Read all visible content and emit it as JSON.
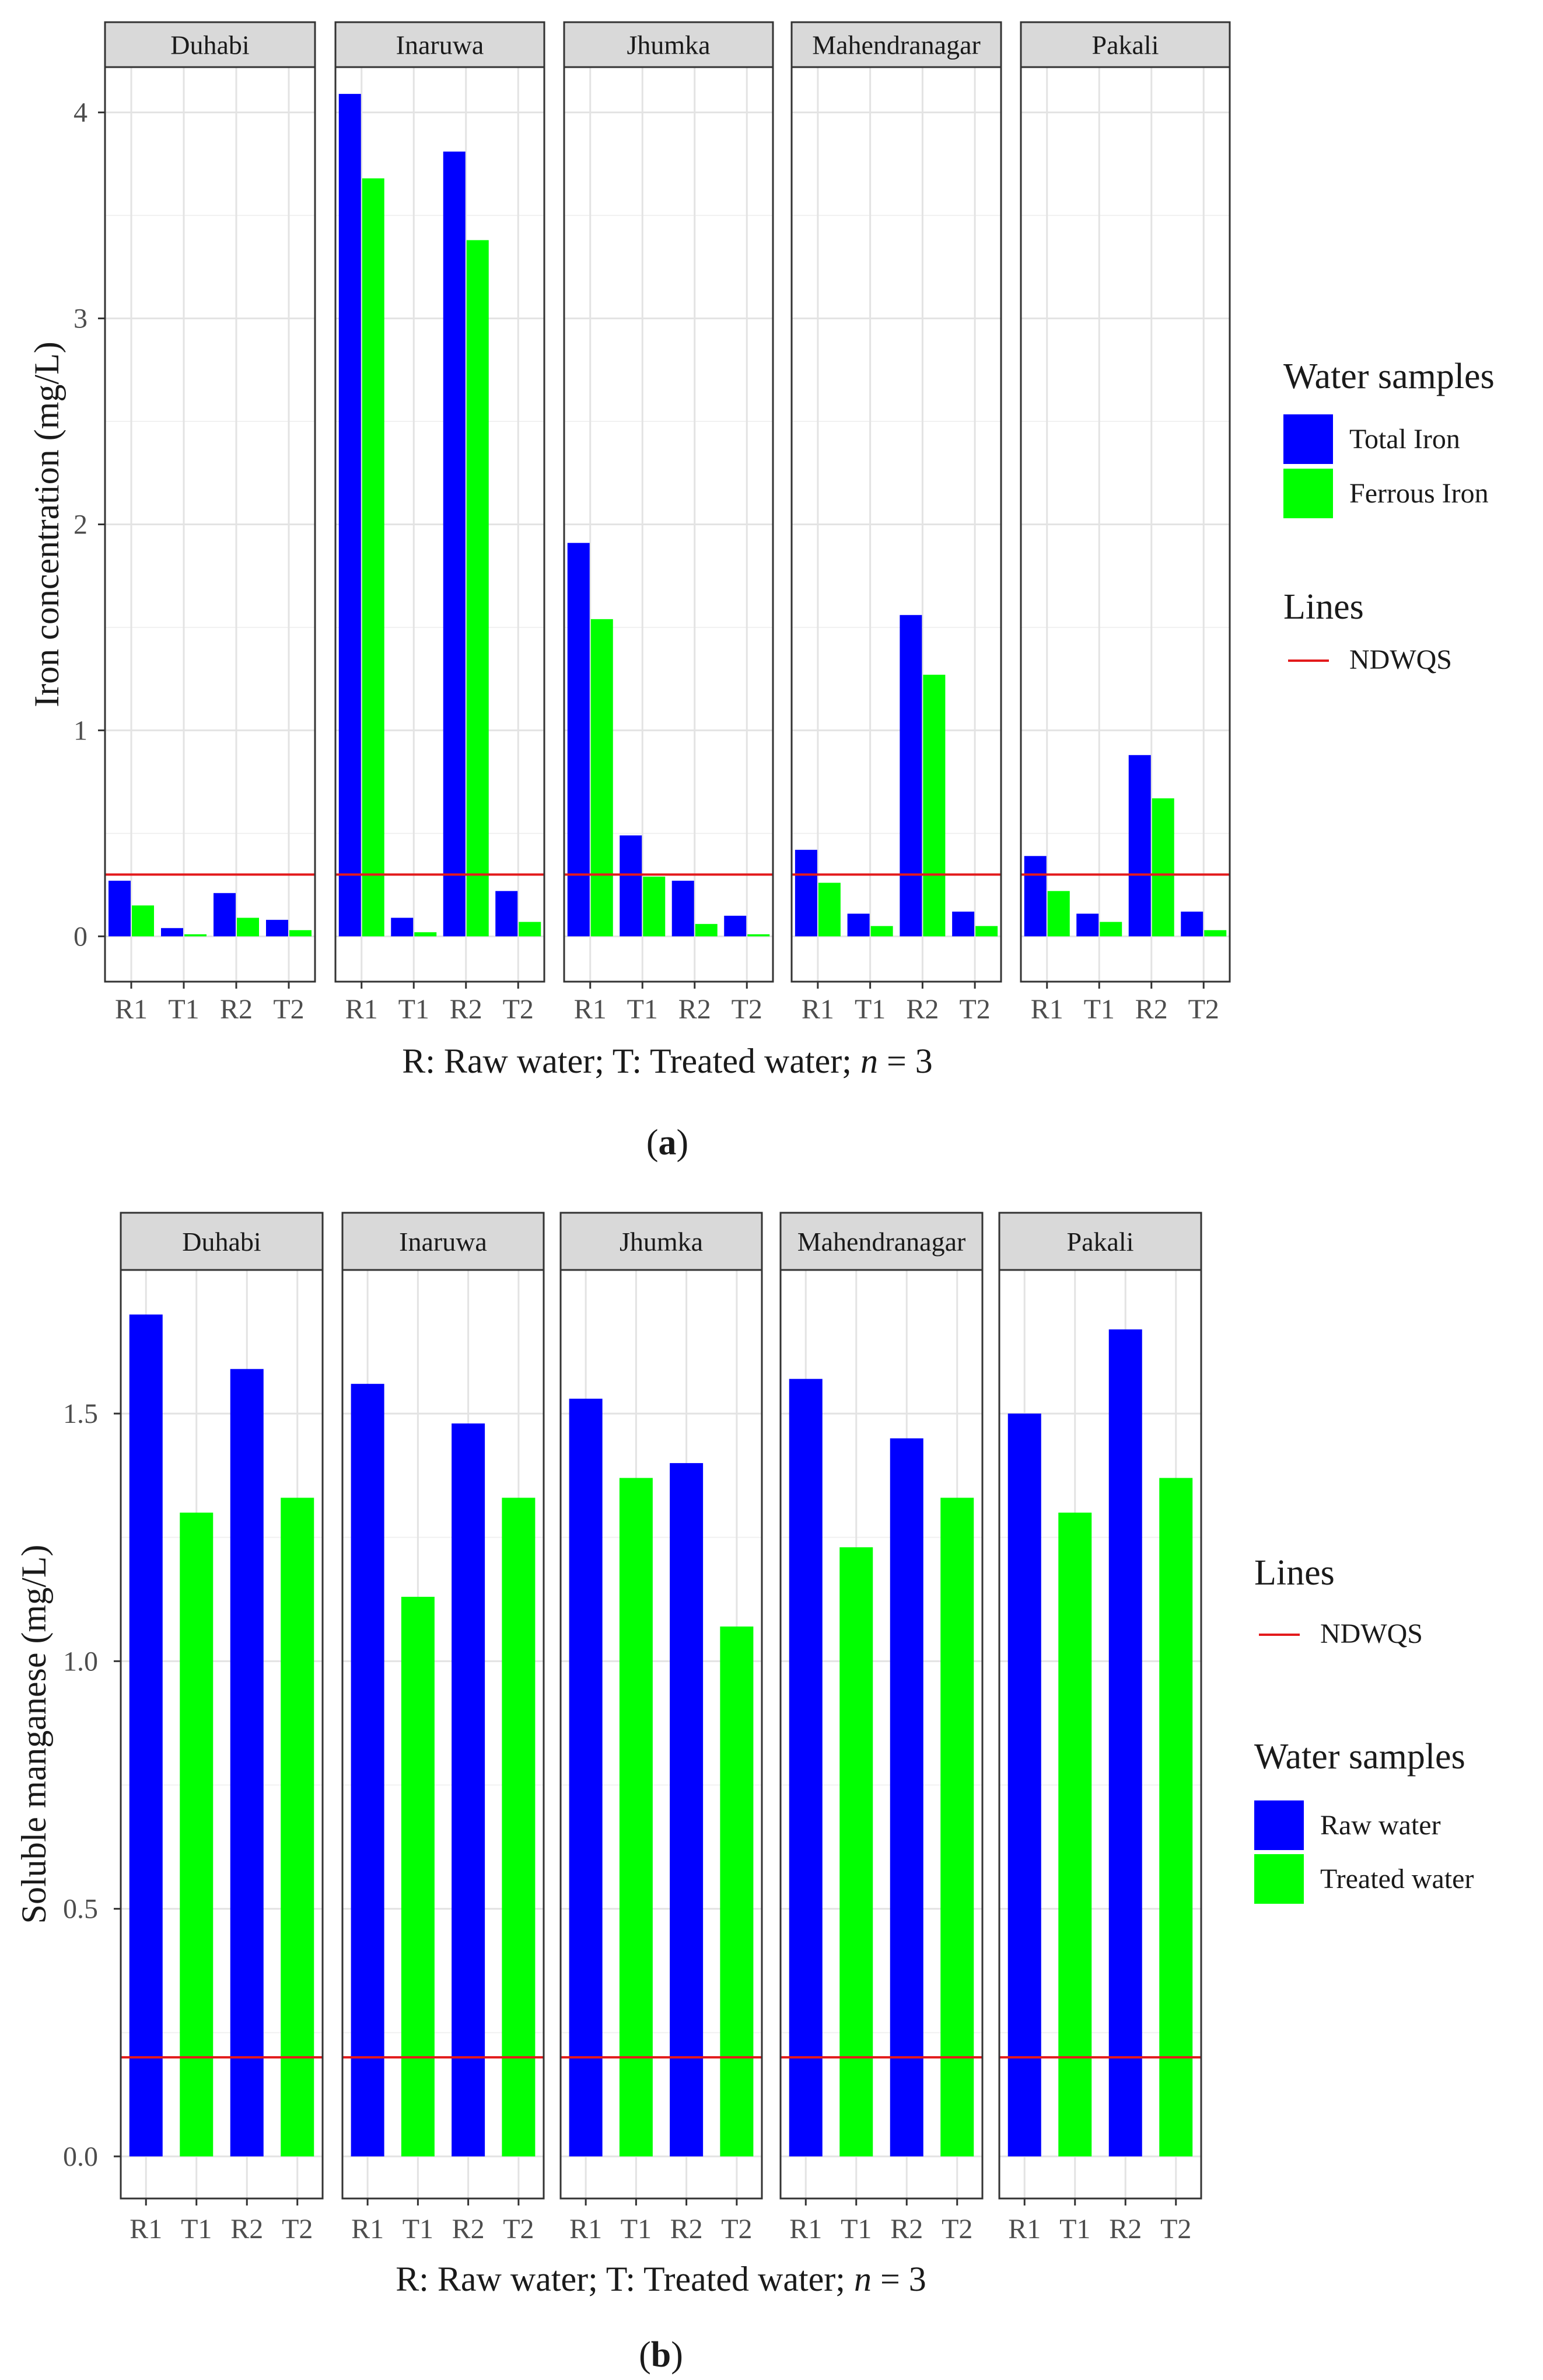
{
  "colors": {
    "raw": "#0000ff",
    "treated": "#00ff00",
    "reference_line": "#e31a1c"
  },
  "chart_data": [
    {
      "type": "bar",
      "panel_label": "a",
      "facets": [
        "Duhabi",
        "Inaruwa",
        "Jhumka",
        "Mahendranagar",
        "Pakali"
      ],
      "categories": [
        "R1",
        "T1",
        "R2",
        "T2"
      ],
      "xlabel_parts": [
        "R: Raw water;  T: Treated water; ",
        "n",
        " = 3"
      ],
      "ylabel": "Iron concentration (mg/L)",
      "ylim": [
        -0.22,
        4.22
      ],
      "yticks": [
        0,
        1,
        2,
        3,
        4
      ],
      "ytick_labels": [
        "0",
        "1",
        "2",
        "3",
        "4"
      ],
      "reference_line": {
        "name": "NDWQS",
        "value": 0.3
      },
      "legend": {
        "series_title": "Water samples",
        "lines_title": "Lines",
        "order": "series-first"
      },
      "series": [
        {
          "name": "Total Iron",
          "color_key": "raw",
          "values": {
            "Duhabi": [
              0.27,
              0.04,
              0.21,
              0.08
            ],
            "Inaruwa": [
              4.09,
              0.09,
              3.81,
              0.22
            ],
            "Jhumka": [
              1.91,
              0.49,
              0.27,
              0.1
            ],
            "Mahendranagar": [
              0.42,
              0.11,
              1.56,
              0.12
            ],
            "Pakali": [
              0.39,
              0.11,
              0.88,
              0.12
            ]
          }
        },
        {
          "name": "Ferrous Iron",
          "color_key": "treated",
          "values": {
            "Duhabi": [
              0.15,
              0.01,
              0.09,
              0.03
            ],
            "Inaruwa": [
              3.68,
              0.02,
              3.38,
              0.07
            ],
            "Jhumka": [
              1.54,
              0.29,
              0.06,
              0.01
            ],
            "Mahendranagar": [
              0.26,
              0.05,
              1.27,
              0.05
            ],
            "Pakali": [
              0.22,
              0.07,
              0.67,
              0.03
            ]
          }
        }
      ]
    },
    {
      "type": "bar",
      "panel_label": "b",
      "facets": [
        "Duhabi",
        "Inaruwa",
        "Jhumka",
        "Mahendranagar",
        "Pakali"
      ],
      "categories": [
        "R1",
        "T1",
        "R2",
        "T2"
      ],
      "xlabel_parts": [
        "R: Raw water;  T: Treated water; ",
        "n",
        " = 3"
      ],
      "ylabel": "Soluble manganese (mg/L)",
      "ylim": [
        -0.085,
        1.79
      ],
      "yticks": [
        0,
        0.5,
        1.0,
        1.5
      ],
      "ytick_labels": [
        "0.0",
        "0.5",
        "1.0",
        "1.5"
      ],
      "reference_line": {
        "name": "NDWQS",
        "value": 0.2
      },
      "legend": {
        "series_title": "Water samples",
        "lines_title": "Lines",
        "order": "lines-first"
      },
      "series": [
        {
          "name": "Raw water",
          "color_key": "raw",
          "categories_used": [
            "R1",
            "R2"
          ]
        },
        {
          "name": "Treated water",
          "color_key": "treated",
          "categories_used": [
            "T1",
            "T2"
          ]
        }
      ],
      "values": {
        "Duhabi": [
          1.7,
          1.3,
          1.59,
          1.33
        ],
        "Inaruwa": [
          1.56,
          1.13,
          1.48,
          1.33
        ],
        "Jhumka": [
          1.53,
          1.37,
          1.4,
          1.07
        ],
        "Mahendranagar": [
          1.57,
          1.23,
          1.45,
          1.33
        ],
        "Pakali": [
          1.5,
          1.3,
          1.67,
          1.37
        ]
      }
    }
  ]
}
